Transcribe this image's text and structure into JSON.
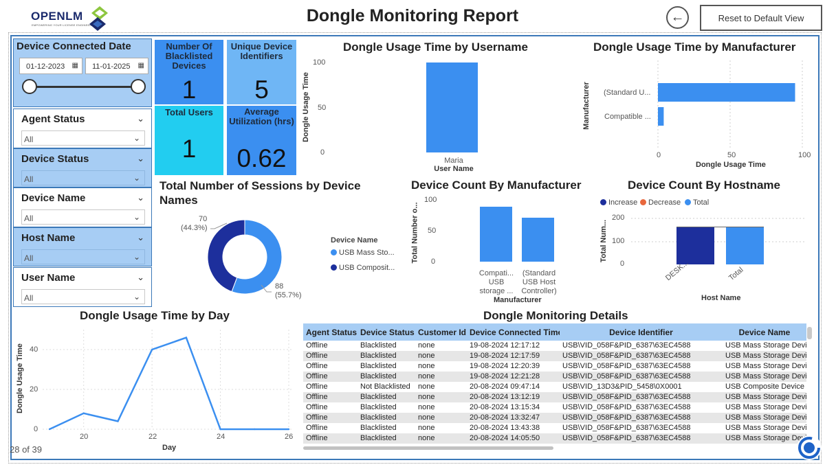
{
  "header": {
    "logo_text": "OPENLM",
    "logo_sub": "EMPOWERING YOUR LICENSE ENGINEERING",
    "title": "Dongle Monitoring Report",
    "reset_label": "Reset to Default View",
    "back_icon": "arrow-left-circle-icon"
  },
  "filters": {
    "date": {
      "title": "Device Connected Date",
      "from": "01-12-2023",
      "to": "11-01-2025"
    },
    "agent_status": {
      "title": "Agent Status",
      "value": "All"
    },
    "device_status": {
      "title": "Device Status",
      "value": "All"
    },
    "device_name": {
      "title": "Device Name",
      "value": "All"
    },
    "host_name": {
      "title": "Host Name",
      "value": "All"
    },
    "user_name": {
      "title": "User Name",
      "value": "All"
    }
  },
  "cards": {
    "blacklisted": {
      "label": "Number Of Blacklisted Devices",
      "value": "1"
    },
    "unique_ids": {
      "label": "Unique Device Identifiers",
      "value": "5"
    },
    "total_users": {
      "label": "Total Users",
      "value": "1"
    },
    "avg_util": {
      "label": "Average Utilization (hrs)",
      "value": "0.62"
    }
  },
  "colors": {
    "primary": "#3b8ff0",
    "dark": "#1d2f9c",
    "header": "#a7cdf4",
    "orange": "#e8673c",
    "cyan": "#22cdf0"
  },
  "page": {
    "indicator": "28 of 39"
  },
  "chart_data": [
    {
      "id": "usage_by_username",
      "type": "bar",
      "title": "Dongle Usage Time by Username",
      "categories": [
        "Maria"
      ],
      "values": [
        99
      ],
      "xlabel": "User Name",
      "ylabel": "Dongle Usage Time",
      "yticks": [
        "0",
        "50",
        "100"
      ],
      "ylim": [
        0,
        100
      ]
    },
    {
      "id": "usage_by_manufacturer",
      "type": "bar",
      "orientation": "horizontal",
      "title": "Dongle Usage Time by Manufacturer",
      "categories": [
        "(Standard U...",
        "Compatible ..."
      ],
      "values": [
        95,
        4
      ],
      "xlabel": "Dongle Usage Time",
      "ylabel": "Manufacturer",
      "xticks": [
        "0",
        "50",
        "100"
      ],
      "xlim": [
        0,
        100
      ]
    },
    {
      "id": "sessions_by_device",
      "type": "pie",
      "donut": true,
      "title": "Total Number of Sessions by Device Names",
      "legend_title": "Device Name",
      "categories": [
        "USB Mass Sto...",
        "USB Composit..."
      ],
      "values": [
        88,
        70
      ],
      "labels": [
        {
          "count": "88",
          "pct": "(55.7%)"
        },
        {
          "count": "70",
          "pct": "(44.3%)"
        }
      ]
    },
    {
      "id": "count_by_manufacturer",
      "type": "bar",
      "title": "Device Count By Manufacturer",
      "categories": [
        "Compati... USB storage ...",
        "(Standard USB Host Controller)"
      ],
      "tick_lines": [
        [
          "Compati...",
          "USB",
          "storage ..."
        ],
        [
          "(Standard",
          "USB Host",
          "Controller)"
        ]
      ],
      "values": [
        88,
        70
      ],
      "xlabel": "Manufacturer",
      "ylabel": "Total Number o...",
      "yticks": [
        "0",
        "50",
        "100"
      ],
      "ylim": [
        0,
        100
      ]
    },
    {
      "id": "count_by_hostname",
      "type": "bar",
      "subtype": "waterfall",
      "title": "Device Count By Hostname",
      "legend": [
        "Increase",
        "Decrease",
        "Total"
      ],
      "categories": [
        "DESK...",
        "Total"
      ],
      "values": [
        158,
        158
      ],
      "xlabel": "Host Name",
      "ylabel": "Total Num...",
      "yticks": [
        "0",
        "100",
        "200"
      ],
      "ylim": [
        0,
        200
      ]
    },
    {
      "id": "usage_by_day",
      "type": "line",
      "title": "Dongle Usage Time by Day",
      "x": [
        19,
        20,
        21,
        22,
        23,
        24,
        25,
        26
      ],
      "values": [
        0,
        8,
        4,
        40,
        46,
        0,
        0,
        0
      ],
      "xlabel": "Day",
      "ylabel": "Dongle Usage Time",
      "xticks": [
        "20",
        "22",
        "24",
        "26"
      ],
      "yticks": [
        "0",
        "20",
        "40"
      ],
      "xlim": [
        19,
        26
      ],
      "ylim": [
        0,
        50
      ]
    }
  ],
  "details": {
    "title": "Dongle Monitoring Details",
    "columns": [
      "Agent Status",
      "Device Status",
      "Customer Id",
      "Device Connected Time",
      "Device Identifier",
      "Device Name"
    ],
    "rows": [
      [
        "Offline",
        "Blacklisted",
        "none",
        "19-08-2024 12:17:12",
        "USB\\VID_058F&PID_6387\\63EC4588",
        "USB Mass Storage Device"
      ],
      [
        "Offline",
        "Blacklisted",
        "none",
        "19-08-2024 12:17:59",
        "USB\\VID_058F&PID_6387\\63EC4588",
        "USB Mass Storage Device"
      ],
      [
        "Offline",
        "Blacklisted",
        "none",
        "19-08-2024 12:20:39",
        "USB\\VID_058F&PID_6387\\63EC4588",
        "USB Mass Storage Device"
      ],
      [
        "Offline",
        "Blacklisted",
        "none",
        "19-08-2024 12:21:28",
        "USB\\VID_058F&PID_6387\\63EC4588",
        "USB Mass Storage Device"
      ],
      [
        "Offline",
        "Not Blacklisted",
        "none",
        "20-08-2024 09:47:14",
        "USB\\VID_13D3&PID_5458\\0X0001",
        "USB Composite Device"
      ],
      [
        "Offline",
        "Blacklisted",
        "none",
        "20-08-2024 13:12:19",
        "USB\\VID_058F&PID_6387\\63EC4588",
        "USB Mass Storage Device"
      ],
      [
        "Offline",
        "Blacklisted",
        "none",
        "20-08-2024 13:15:34",
        "USB\\VID_058F&PID_6387\\63EC4588",
        "USB Mass Storage Device"
      ],
      [
        "Offline",
        "Blacklisted",
        "none",
        "20-08-2024 13:32:47",
        "USB\\VID_058F&PID_6387\\63EC4588",
        "USB Mass Storage Device"
      ],
      [
        "Offline",
        "Blacklisted",
        "none",
        "20-08-2024 13:43:38",
        "USB\\VID_058F&PID_6387\\63EC4588",
        "USB Mass Storage Device"
      ],
      [
        "Offline",
        "Blacklisted",
        "none",
        "20-08-2024 14:05:50",
        "USB\\VID_058F&PID_6387\\63EC4588",
        "USB Mass Storage Device"
      ]
    ]
  }
}
